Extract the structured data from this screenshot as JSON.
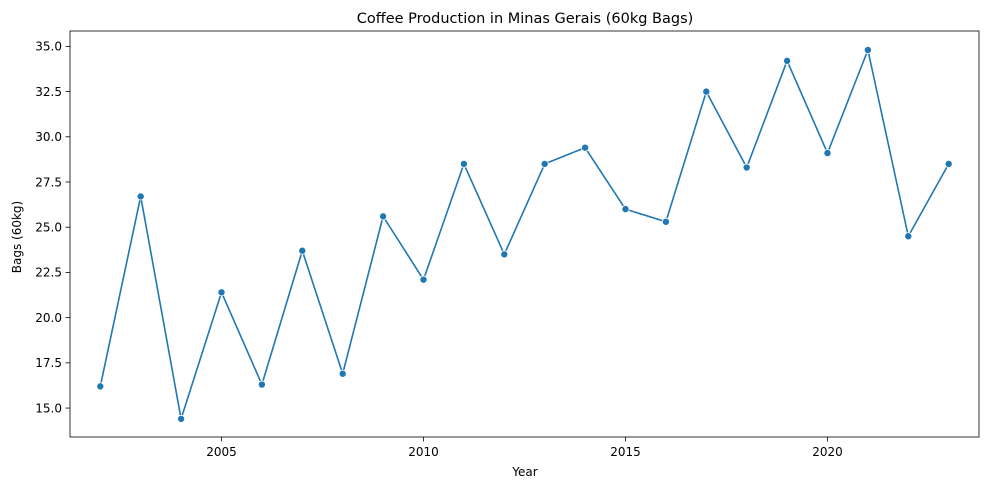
{
  "chart_data": {
    "type": "line",
    "title": "Coffee Production in Minas Gerais (60kg Bags)",
    "xlabel": "Year",
    "ylabel": "Bags (60kg)",
    "xlim": [
      2001.25,
      2023.75
    ],
    "ylim": [
      13.4,
      35.85
    ],
    "x_ticks": [
      2005,
      2010,
      2015,
      2020
    ],
    "y_ticks": [
      15.0,
      17.5,
      20.0,
      22.5,
      25.0,
      27.5,
      30.0,
      32.5,
      35.0
    ],
    "grid": false,
    "legend": "none",
    "series": [
      {
        "color": "#1f77b4",
        "marker": "circle",
        "x": [
          2002,
          2003,
          2004,
          2005,
          2006,
          2007,
          2008,
          2009,
          2010,
          2011,
          2012,
          2013,
          2014,
          2015,
          2016,
          2017,
          2018,
          2019,
          2020,
          2021,
          2022,
          2023
        ],
        "y": [
          16.2,
          26.7,
          14.4,
          21.4,
          16.3,
          23.7,
          16.9,
          25.6,
          22.1,
          28.5,
          23.5,
          28.5,
          29.4,
          26.0,
          25.3,
          32.5,
          28.3,
          34.2,
          29.1,
          34.8,
          24.5,
          28.5
        ]
      }
    ]
  }
}
